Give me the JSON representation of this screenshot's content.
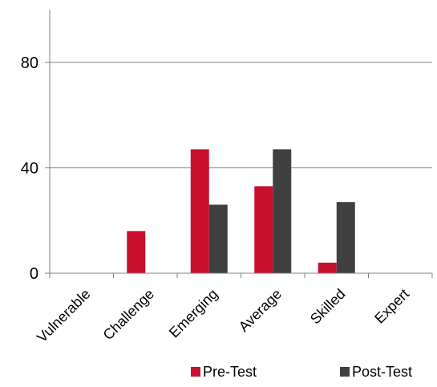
{
  "chart_data": {
    "type": "bar",
    "title": "",
    "xlabel": "",
    "ylabel": "",
    "categories": [
      "Vulnerable",
      "Challenge",
      "Emerging",
      "Average",
      "Skilled",
      "Expert"
    ],
    "series": [
      {
        "name": "Pre-Test",
        "color": "#C8102E",
        "values": [
          0,
          16,
          47,
          33,
          4,
          0
        ]
      },
      {
        "name": "Post-Test",
        "color": "#404040",
        "values": [
          0,
          0,
          26,
          47,
          27,
          0
        ]
      }
    ],
    "ylim": [
      0,
      100
    ],
    "yticks": [
      0,
      40,
      80
    ],
    "grid": true,
    "legend": "bottom-right"
  }
}
